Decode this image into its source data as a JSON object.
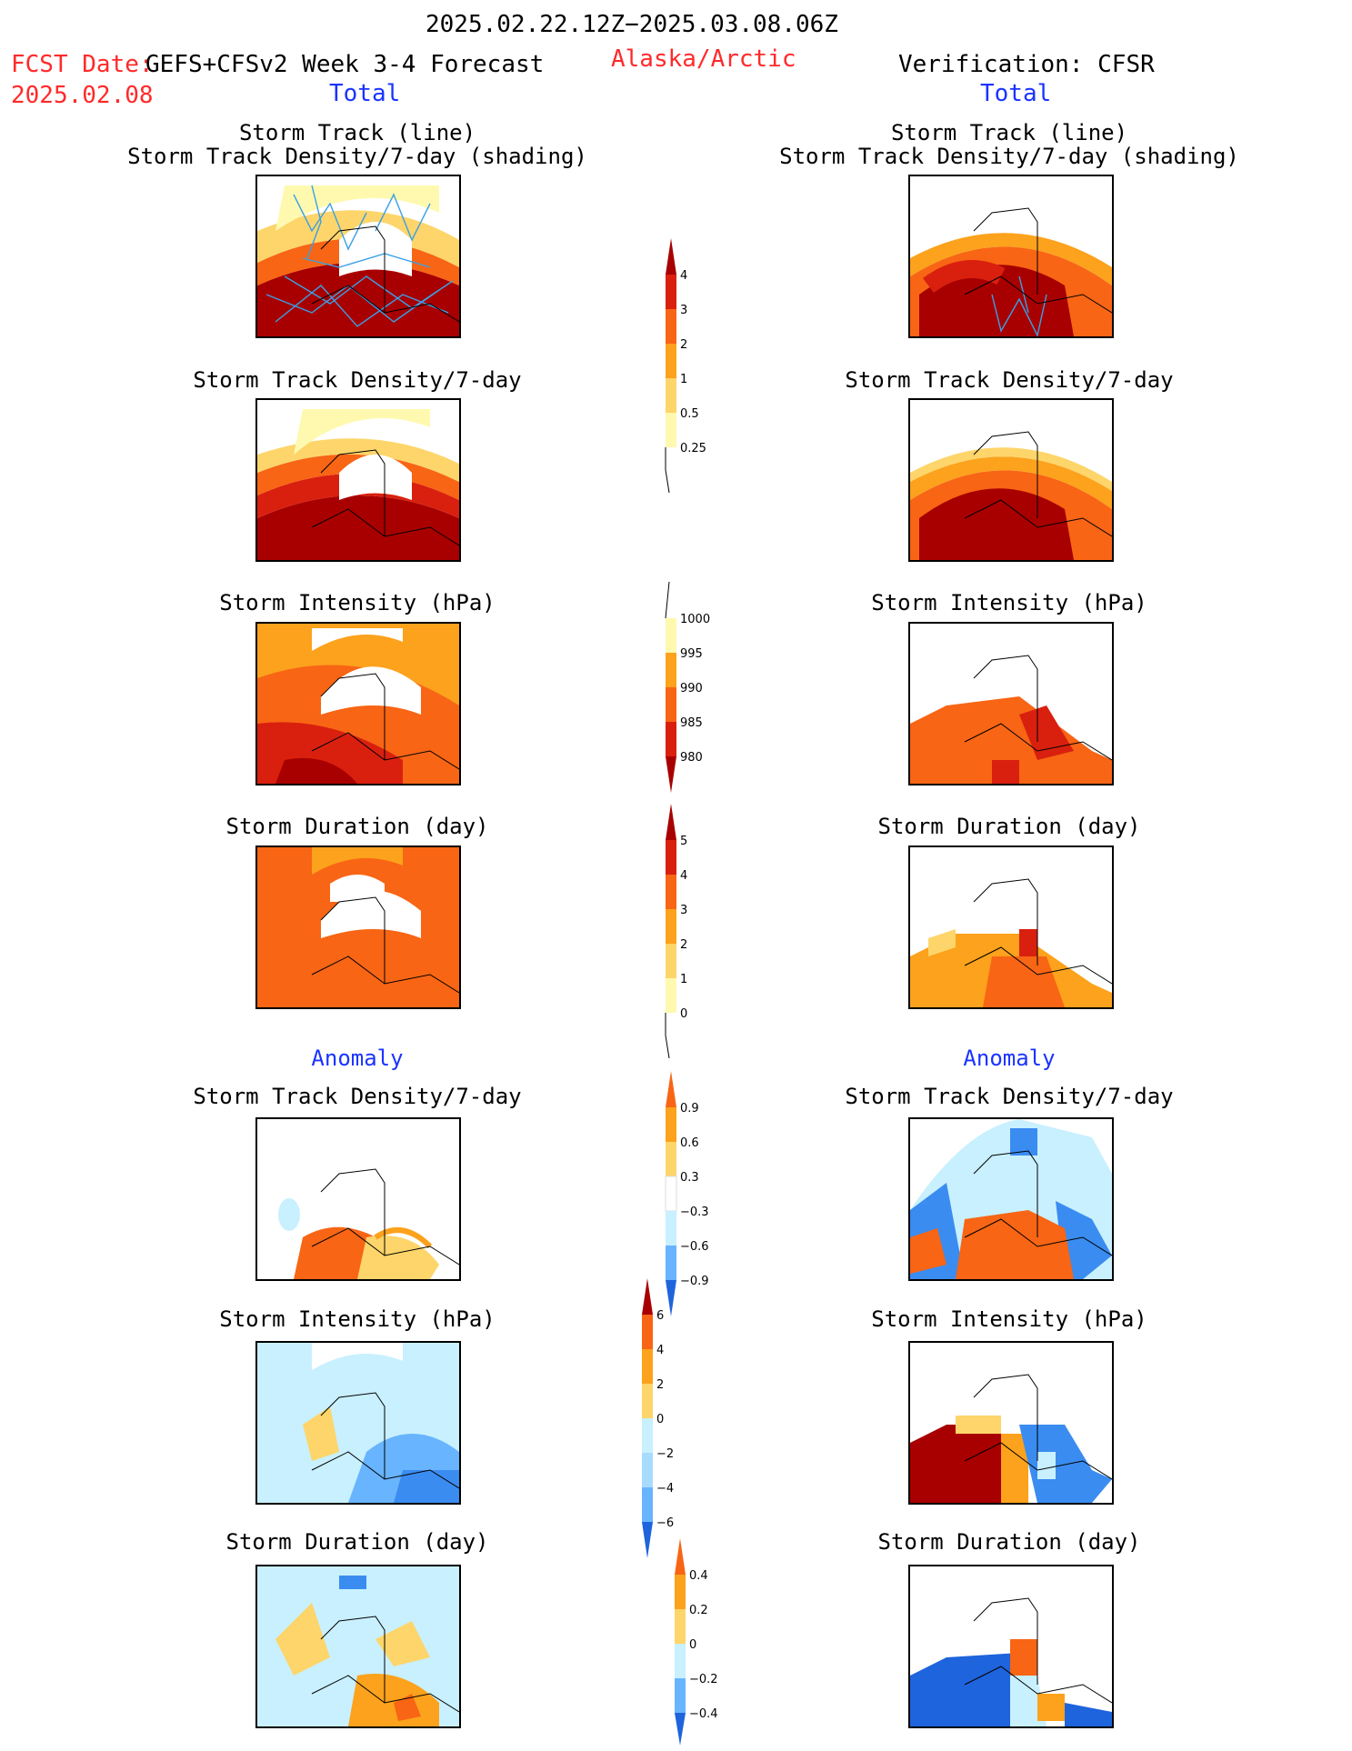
{
  "header": {
    "period": "2025.02.22.12Z−2025.03.08.06Z",
    "fcst_date_label": "FCST Date:",
    "fcst_model": "GEFS+CFSv2 Week 3-4 Forecast",
    "fcst_date": "2025.02.08",
    "region": "Alaska/Arctic",
    "verification": "Verification: CFSR",
    "total_left": "Total",
    "total_right": "Total",
    "anomaly_left": "Anomaly",
    "anomaly_right": "Anomaly"
  },
  "panel_titles": {
    "track_line": "Storm Track (line)",
    "track_shading": "Storm Track Density/7-day (shading)",
    "density": "Storm Track Density/7-day",
    "intensity": "Storm Intensity (hPa)",
    "duration": "Storm Duration (day)"
  },
  "colorbars": {
    "density": [
      "4",
      "3",
      "2",
      "1",
      "0.5",
      "0.25"
    ],
    "intensity": [
      "1000",
      "995",
      "990",
      "985",
      "980"
    ],
    "duration": [
      "5",
      "4",
      "3",
      "2",
      "1",
      "0"
    ],
    "density_anom": [
      "0.9",
      "0.6",
      "0.3",
      "−0.3",
      "−0.6",
      "−0.9"
    ],
    "intensity_anom": [
      "6",
      "4",
      "2",
      "0",
      "−2",
      "−4",
      "−6"
    ],
    "duration_anom": [
      "0.4",
      "0.2",
      "0",
      "−0.2",
      "−0.4"
    ]
  },
  "colors": {
    "warm": [
      "#fff9b0",
      "#fdd56a",
      "#fca21c",
      "#f86514",
      "#d9200f",
      "#a80000"
    ],
    "cool": [
      "#c8f0ff",
      "#a8dcff",
      "#68b4ff",
      "#3a8cf0",
      "#1e64dc"
    ],
    "line": "#3aa0e6"
  }
}
